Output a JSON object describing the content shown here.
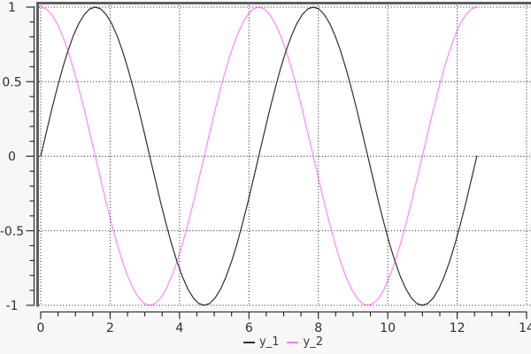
{
  "figure": {
    "background": "#f7f7f7",
    "plot_background": "#ffffff",
    "frame_color": "#5e5e5e",
    "grid_color": "#000000",
    "axis_color": "#1c1c1c",
    "tick_label_color": "#2e2e2e"
  },
  "chart_data": {
    "type": "line",
    "title": "",
    "xlabel": "",
    "ylabel": "",
    "xlim": [
      0,
      14
    ],
    "ylim": [
      -1,
      1
    ],
    "x_ticks": [
      0,
      2,
      4,
      6,
      8,
      10,
      12,
      14
    ],
    "x_tick_labels": [
      "0",
      "2",
      "4",
      "6",
      "8",
      "10",
      "12",
      "14"
    ],
    "y_ticks": [
      1,
      0.5,
      0,
      -0.5,
      -1
    ],
    "y_tick_labels": [
      "1",
      "0.5",
      "0",
      "-0.5",
      "-1"
    ],
    "x_minor_tick_step": 0.5,
    "y_minor_tick_step": 0.1,
    "grid": "dotted",
    "legend_position": "below-center",
    "x": [
      0,
      0.157,
      0.314,
      0.471,
      0.628,
      0.785,
      0.942,
      1.1,
      1.257,
      1.414,
      1.571,
      1.728,
      1.885,
      2.042,
      2.199,
      2.356,
      2.513,
      2.67,
      2.827,
      2.985,
      3.142,
      3.299,
      3.456,
      3.613,
      3.77,
      3.927,
      4.084,
      4.241,
      4.398,
      4.555,
      4.712,
      4.869,
      5.027,
      5.184,
      5.341,
      5.498,
      5.655,
      5.812,
      5.969,
      6.126,
      6.283,
      6.44,
      6.597,
      6.754,
      6.912,
      7.069,
      7.226,
      7.383,
      7.54,
      7.697,
      7.854,
      8.011,
      8.168,
      8.325,
      8.482,
      8.639,
      8.796,
      8.954,
      9.111,
      9.268,
      9.425,
      9.582,
      9.739,
      9.896,
      10.053,
      10.21,
      10.367,
      10.524,
      10.681,
      10.838,
      10.996,
      11.153,
      11.31,
      11.467,
      11.624,
      11.781,
      11.938,
      12.095,
      12.252,
      12.409,
      12.566
    ],
    "series": [
      {
        "name": "y_1",
        "color": "#000000",
        "function": "sin(x)",
        "y": [
          0,
          0.156,
          0.309,
          0.454,
          0.588,
          0.707,
          0.809,
          0.891,
          0.951,
          0.988,
          1,
          0.988,
          0.951,
          0.891,
          0.809,
          0.707,
          0.588,
          0.454,
          0.309,
          0.156,
          0,
          -0.156,
          -0.309,
          -0.454,
          -0.588,
          -0.707,
          -0.809,
          -0.891,
          -0.951,
          -0.988,
          -1,
          -0.988,
          -0.951,
          -0.891,
          -0.809,
          -0.707,
          -0.588,
          -0.454,
          -0.309,
          -0.156,
          0,
          0.156,
          0.309,
          0.454,
          0.588,
          0.707,
          0.809,
          0.891,
          0.951,
          0.988,
          1,
          0.988,
          0.951,
          0.891,
          0.809,
          0.707,
          0.588,
          0.454,
          0.309,
          0.156,
          0,
          -0.156,
          -0.309,
          -0.454,
          -0.588,
          -0.707,
          -0.809,
          -0.891,
          -0.951,
          -0.988,
          -1,
          -0.988,
          -0.951,
          -0.891,
          -0.809,
          -0.707,
          -0.588,
          -0.454,
          -0.309,
          -0.156,
          0
        ]
      },
      {
        "name": "y_2",
        "color": "#ff00ff",
        "function": "cos(x)",
        "y": [
          1,
          0.988,
          0.951,
          0.891,
          0.809,
          0.707,
          0.588,
          0.454,
          0.309,
          0.156,
          0,
          -0.156,
          -0.309,
          -0.454,
          -0.588,
          -0.707,
          -0.809,
          -0.891,
          -0.951,
          -0.988,
          -1,
          -0.988,
          -0.951,
          -0.891,
          -0.809,
          -0.707,
          -0.588,
          -0.454,
          -0.309,
          -0.156,
          0,
          0.156,
          0.309,
          0.454,
          0.588,
          0.707,
          0.809,
          0.891,
          0.951,
          0.988,
          1,
          0.988,
          0.951,
          0.891,
          0.809,
          0.707,
          0.588,
          0.454,
          0.309,
          0.156,
          0,
          -0.156,
          -0.309,
          -0.454,
          -0.588,
          -0.707,
          -0.809,
          -0.891,
          -0.951,
          -0.988,
          -1,
          -0.988,
          -0.951,
          -0.891,
          -0.809,
          -0.707,
          -0.588,
          -0.454,
          -0.309,
          -0.156,
          0,
          0.156,
          0.309,
          0.454,
          0.588,
          0.707,
          0.809,
          0.891,
          0.951,
          0.988,
          1
        ]
      }
    ]
  },
  "legend": {
    "items": [
      {
        "label": "y_1",
        "color": "#000000"
      },
      {
        "label": "y_2",
        "color": "#ff00ff"
      }
    ]
  }
}
